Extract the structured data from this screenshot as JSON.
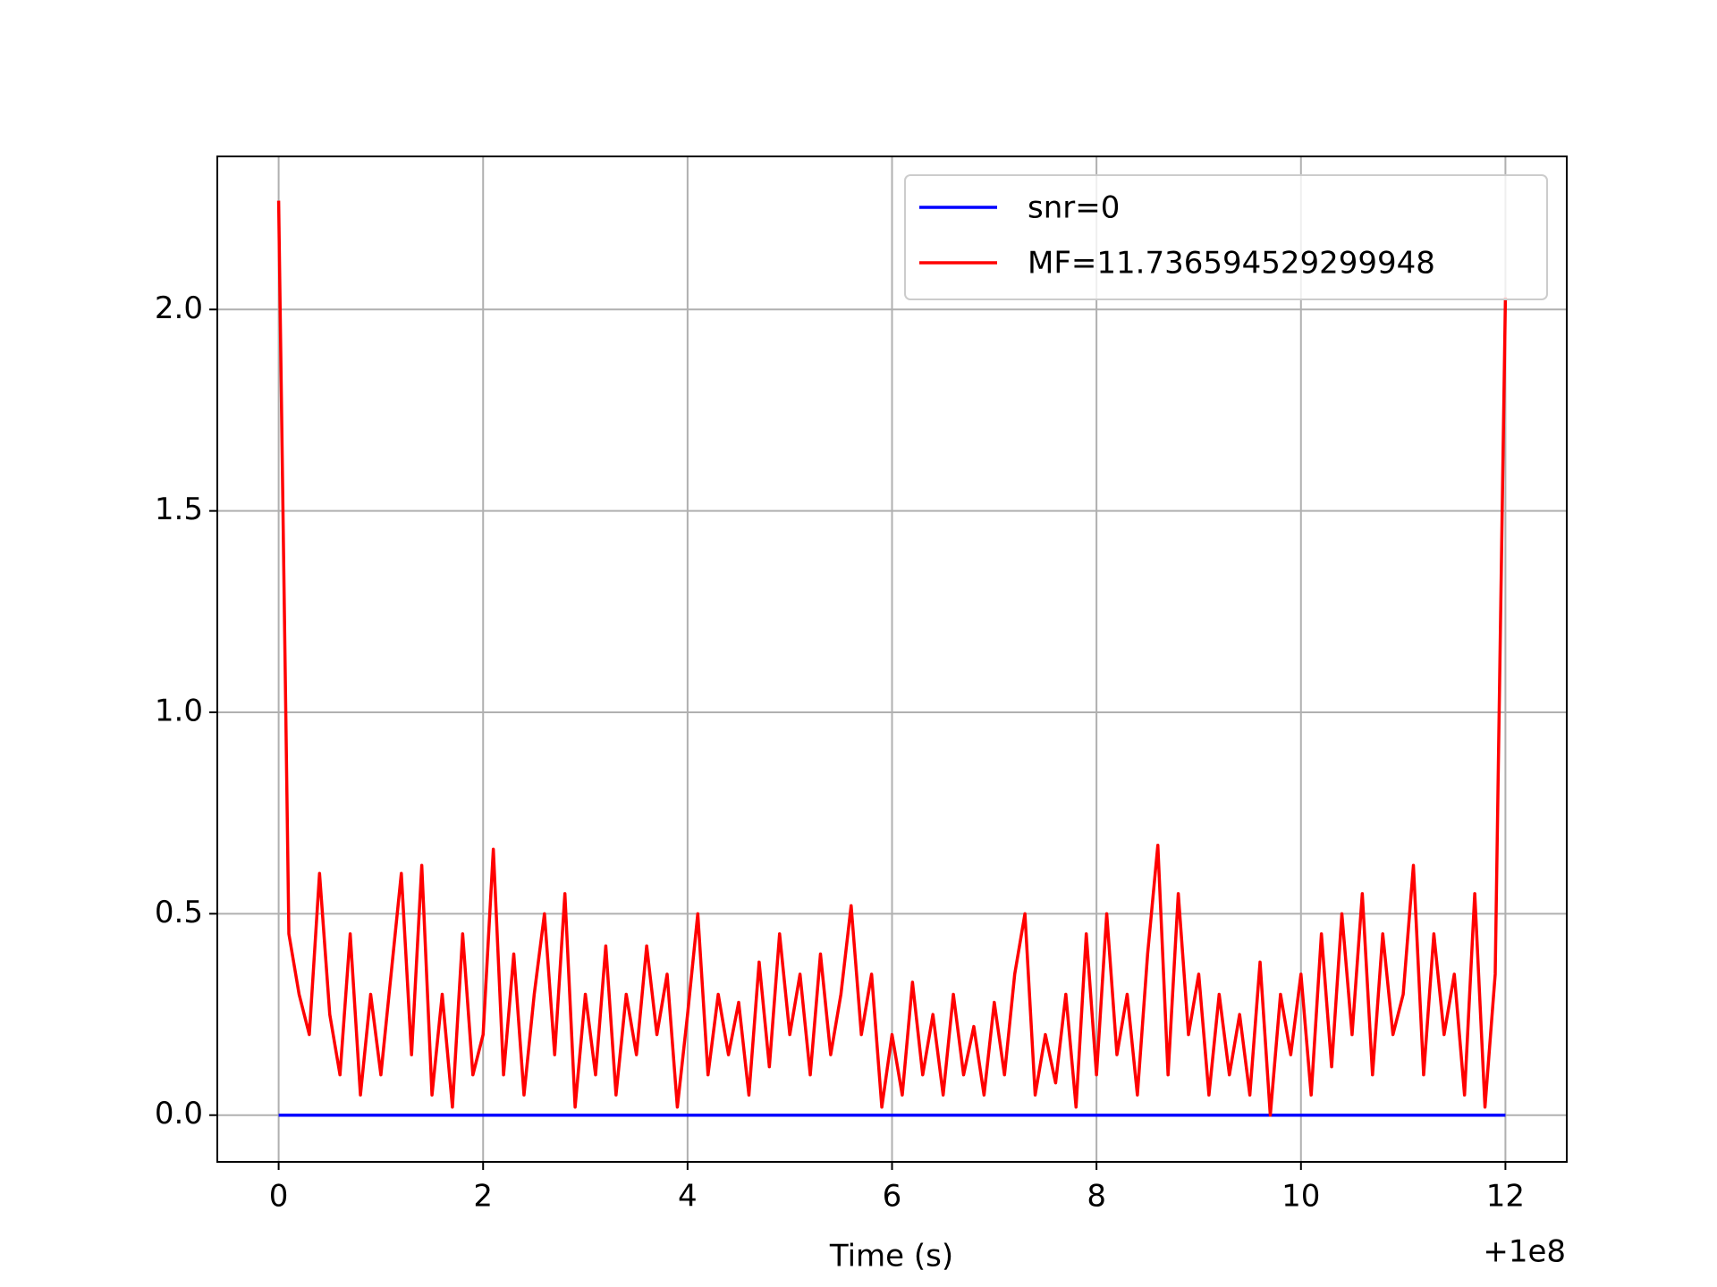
{
  "chart_data": {
    "type": "line",
    "x_label": "Time (s)",
    "x_offset_label": "+1e8",
    "xlim": [
      -0.6,
      12.6
    ],
    "xticks": [
      0,
      2,
      4,
      6,
      8,
      10,
      12
    ],
    "ylim": [
      -0.116,
      2.38
    ],
    "yticks": [
      {
        "value": 0,
        "label": "0.0"
      },
      {
        "value": 0.5,
        "label": "0.5"
      },
      {
        "value": 1,
        "label": "1.0"
      },
      {
        "value": 1.5,
        "label": "1.5"
      },
      {
        "value": 2,
        "label": "2.0"
      }
    ],
    "grid": true,
    "legend": "upper right",
    "series": [
      {
        "name": "snr=0",
        "color": "#0000ff",
        "x": [
          0,
          12
        ],
        "values": [
          0,
          0
        ]
      },
      {
        "name": "MF=11.736594529299948",
        "color": "#ff0000",
        "x": [
          0,
          0.1,
          0.2,
          0.3,
          0.4,
          0.5,
          0.6,
          0.7,
          0.8,
          0.9,
          1,
          1.1,
          1.2,
          1.3,
          1.4,
          1.5,
          1.6,
          1.7,
          1.8,
          1.9,
          2,
          2.1,
          2.2,
          2.3,
          2.4,
          2.5,
          2.6,
          2.7,
          2.8,
          2.9,
          3,
          3.1,
          3.2,
          3.3,
          3.4,
          3.5,
          3.6,
          3.7,
          3.8,
          3.9,
          4,
          4.1,
          4.2,
          4.3,
          4.4,
          4.5,
          4.6,
          4.7,
          4.8,
          4.9,
          5,
          5.1,
          5.2,
          5.3,
          5.4,
          5.5,
          5.6,
          5.7,
          5.8,
          5.9,
          6,
          6.1,
          6.2,
          6.3,
          6.4,
          6.5,
          6.6,
          6.7,
          6.8,
          6.9,
          7,
          7.1,
          7.2,
          7.3,
          7.4,
          7.5,
          7.6,
          7.7,
          7.8,
          7.9,
          8,
          8.1,
          8.2,
          8.3,
          8.4,
          8.5,
          8.6,
          8.7,
          8.8,
          8.9,
          9,
          9.1,
          9.2,
          9.3,
          9.4,
          9.5,
          9.6,
          9.7,
          9.8,
          9.9,
          10,
          10.1,
          10.2,
          10.3,
          10.4,
          10.5,
          10.6,
          10.7,
          10.8,
          10.9,
          11,
          11.1,
          11.2,
          11.3,
          11.4,
          11.5,
          11.6,
          11.7,
          11.8,
          11.9,
          12
        ],
        "values": [
          2.27,
          0.45,
          0.3,
          0.2,
          0.6,
          0.25,
          0.1,
          0.45,
          0.05,
          0.3,
          0.1,
          0.35,
          0.6,
          0.15,
          0.62,
          0.05,
          0.3,
          0.02,
          0.45,
          0.1,
          0.2,
          0.66,
          0.1,
          0.4,
          0.05,
          0.3,
          0.5,
          0.15,
          0.55,
          0.02,
          0.3,
          0.1,
          0.42,
          0.05,
          0.3,
          0.15,
          0.42,
          0.2,
          0.35,
          0.02,
          0.25,
          0.5,
          0.1,
          0.3,
          0.15,
          0.28,
          0.05,
          0.38,
          0.12,
          0.45,
          0.2,
          0.35,
          0.1,
          0.4,
          0.15,
          0.3,
          0.52,
          0.2,
          0.35,
          0.02,
          0.2,
          0.05,
          0.33,
          0.1,
          0.25,
          0.05,
          0.3,
          0.1,
          0.22,
          0.05,
          0.28,
          0.1,
          0.35,
          0.5,
          0.05,
          0.2,
          0.08,
          0.3,
          0.02,
          0.45,
          0.1,
          0.5,
          0.15,
          0.3,
          0.05,
          0.4,
          0.67,
          0.1,
          0.55,
          0.2,
          0.35,
          0.05,
          0.3,
          0.1,
          0.25,
          0.05,
          0.38,
          0,
          0.3,
          0.15,
          0.35,
          0.05,
          0.45,
          0.12,
          0.5,
          0.2,
          0.55,
          0.1,
          0.45,
          0.2,
          0.3,
          0.62,
          0.1,
          0.45,
          0.2,
          0.35,
          0.05,
          0.55,
          0.02,
          0.35,
          2.03
        ]
      }
    ]
  }
}
